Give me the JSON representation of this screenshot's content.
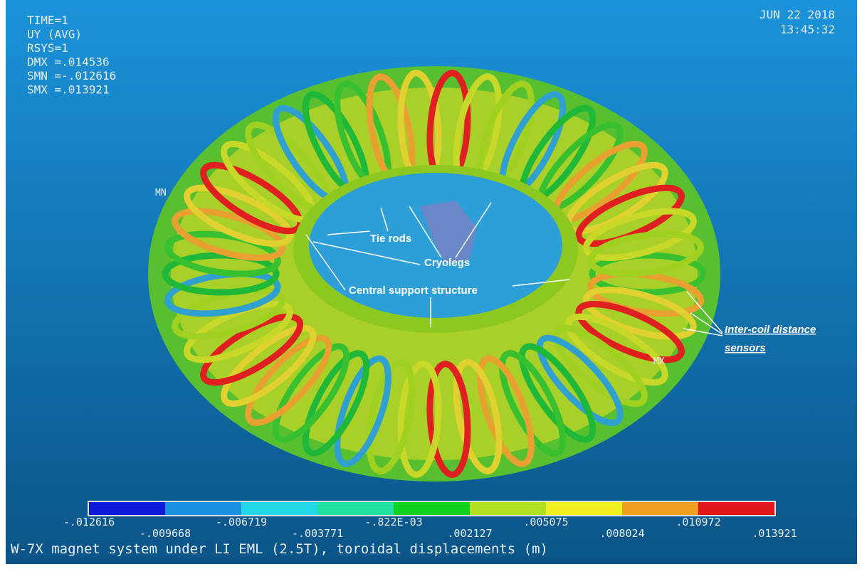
{
  "info": {
    "lines": [
      "TIME=1",
      "UY        (AVG)",
      "RSYS=1",
      "DMX =.014536",
      "SMN =-.012616",
      "SMX =.013921"
    ],
    "date": "JUN 22 2018",
    "time": "13:45:32"
  },
  "markers": {
    "min": "MN",
    "max": "MX"
  },
  "annotations": {
    "tie_rods": "Tie rods",
    "cryolegs": "Cryolegs",
    "central_support": "Central support structure",
    "sensors_line1": "Inter-coil distance",
    "sensors_line2": "sensors"
  },
  "legend": {
    "labels": [
      "-.012616",
      "-.009668",
      "-.006719",
      "-.003771",
      "-.822E-03",
      ".002127",
      ".005075",
      ".008024",
      ".010972",
      ".013921"
    ],
    "colors": [
      "#0a1ad8",
      "#1a90e0",
      "#22d8e8",
      "#20e0a0",
      "#10d020",
      "#b0e020",
      "#f0f020",
      "#f0a020",
      "#e01818"
    ]
  },
  "caption": "W-7X magnet system under LI EML (2.5T), toroidal displacements (m)"
}
